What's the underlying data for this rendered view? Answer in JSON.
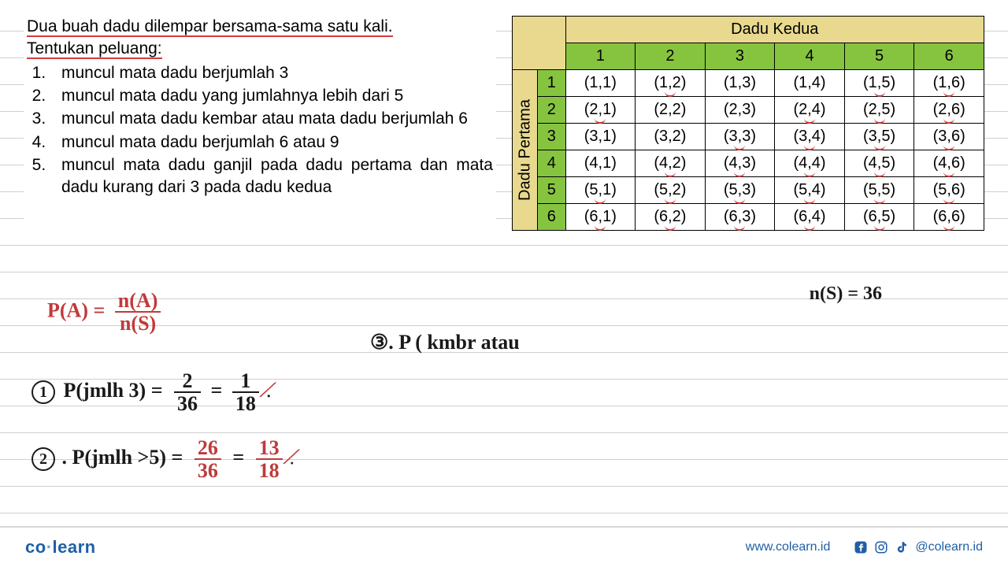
{
  "question": {
    "intro_line1": "Dua buah dadu dilempar bersama-sama satu kali.",
    "intro_line2": "Tentukan peluang:",
    "items": [
      "muncul mata dadu berjumlah 3",
      "muncul mata dadu yang jumlahnya lebih dari 5",
      "muncul mata dadu kembar atau mata dadu berjumlah 6",
      "muncul mata dadu berjumlah 6 atau 9",
      "muncul mata dadu ganjil pada dadu pertama dan mata dadu kurang dari 3 pada dadu kedua"
    ]
  },
  "table": {
    "title_col": "Dadu Kedua",
    "title_row": "Dadu Pertama",
    "headers": [
      "1",
      "2",
      "3",
      "4",
      "5",
      "6"
    ],
    "rows": [
      [
        {
          "v": "(1,1)",
          "m": 0
        },
        {
          "v": "(1,2)",
          "m": 1
        },
        {
          "v": "(1,3)",
          "m": 0
        },
        {
          "v": "(1,4)",
          "m": 0
        },
        {
          "v": "(1,5)",
          "m": 1
        },
        {
          "v": "(1,6)",
          "m": 1
        }
      ],
      [
        {
          "v": "(2,1)",
          "m": 1
        },
        {
          "v": "(2,2)",
          "m": 0
        },
        {
          "v": "(2,3)",
          "m": 0
        },
        {
          "v": "(2,4)",
          "m": 1
        },
        {
          "v": "(2,5)",
          "m": 1
        },
        {
          "v": "(2,6)",
          "m": 1
        }
      ],
      [
        {
          "v": "(3,1)",
          "m": 0
        },
        {
          "v": "(3,2)",
          "m": 0
        },
        {
          "v": "(3,3)",
          "m": 1
        },
        {
          "v": "(3,4)",
          "m": 1
        },
        {
          "v": "(3,5)",
          "m": 1
        },
        {
          "v": "(3,6)",
          "m": 1
        }
      ],
      [
        {
          "v": "(4,1)",
          "m": 0
        },
        {
          "v": "(4,2)",
          "m": 1
        },
        {
          "v": "(4,3)",
          "m": 1
        },
        {
          "v": "(4,4)",
          "m": 1
        },
        {
          "v": "(4,5)",
          "m": 1
        },
        {
          "v": "(4,6)",
          "m": 1
        }
      ],
      [
        {
          "v": "(5,1)",
          "m": 1
        },
        {
          "v": "(5,2)",
          "m": 1
        },
        {
          "v": "(5,3)",
          "m": 1
        },
        {
          "v": "(5,4)",
          "m": 1
        },
        {
          "v": "(5,5)",
          "m": 1
        },
        {
          "v": "(5,6)",
          "m": 1
        }
      ],
      [
        {
          "v": "(6,1)",
          "m": 1
        },
        {
          "v": "(6,2)",
          "m": 1
        },
        {
          "v": "(6,3)",
          "m": 1
        },
        {
          "v": "(6,4)",
          "m": 1
        },
        {
          "v": "(6,5)",
          "m": 1
        },
        {
          "v": "(6,6)",
          "m": 1
        }
      ]
    ],
    "colors": {
      "header_yellow": "#e8d98f",
      "header_green": "#86c440",
      "border": "#000000",
      "mark": "#d43b3b"
    }
  },
  "handwriting": {
    "ns": "n(S) = 36",
    "formula_lhs": "P(A) =",
    "formula_num": "n(A)",
    "formula_den": "n(S)",
    "line3_label": "③. P ( kmbr atau",
    "ans1": {
      "circ": "1",
      "lhs": "P(jmlh 3) =",
      "n1": "2",
      "d1": "36",
      "eq": "=",
      "n2": "1",
      "d2": "18"
    },
    "ans2": {
      "circ": "2",
      "lhs": ". P(jmlh >5)  =",
      "n1": "26",
      "d1": "36",
      "eq": "=",
      "n2": "13",
      "d2": "18"
    }
  },
  "footer": {
    "brand_a": "co",
    "brand_b": "learn",
    "url": "www.colearn.id",
    "handle": "@colearn.id"
  },
  "colors": {
    "red_ink": "#c03a3a",
    "black_ink": "#1a1a1a",
    "brand_blue": "#1e5fa6",
    "rule_line": "#cfcfcf",
    "bg": "#ffffff"
  }
}
